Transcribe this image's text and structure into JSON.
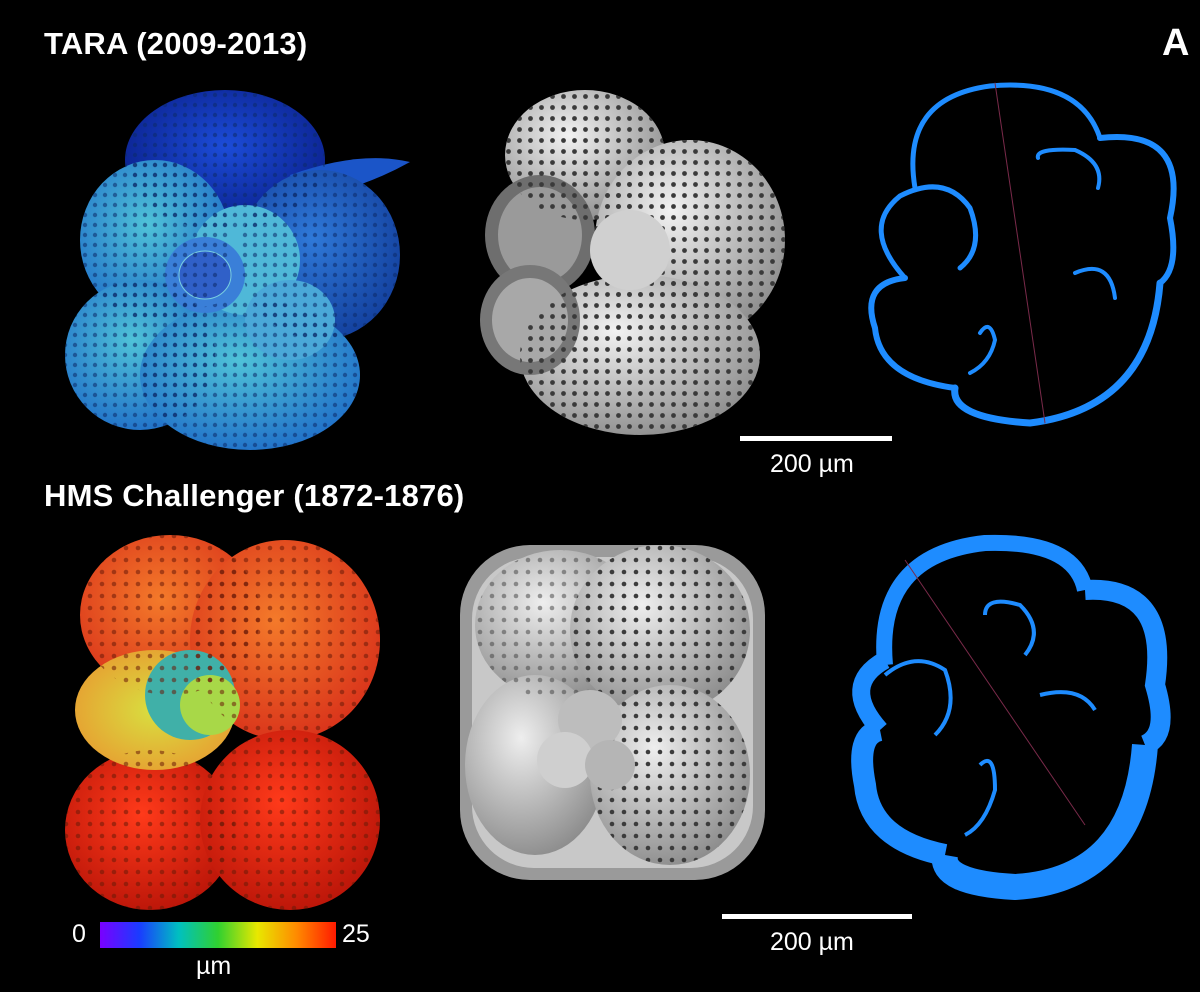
{
  "rows": [
    {
      "title": "TARA (2009-2013)"
    },
    {
      "title": "HMS Challenger (1872-1876)"
    }
  ],
  "panel_label": "A",
  "scale_bars": [
    {
      "label": "200 µm",
      "length_um": 200
    },
    {
      "label": "200 µm",
      "length_um": 200
    }
  ],
  "colorbar": {
    "min": "0",
    "max": "25",
    "unit": "µm",
    "stops": [
      "#7a00ff",
      "#1a3cff",
      "#00c0c0",
      "#30d030",
      "#e8e800",
      "#ff8a00",
      "#ff1a00"
    ]
  },
  "colors": {
    "background": "#000000",
    "cross_section": "#1e8cff",
    "tara_thickness": "#2a6fd0",
    "challenger_thickness": "#e8321a",
    "sem_render": "#d9d9d9"
  }
}
